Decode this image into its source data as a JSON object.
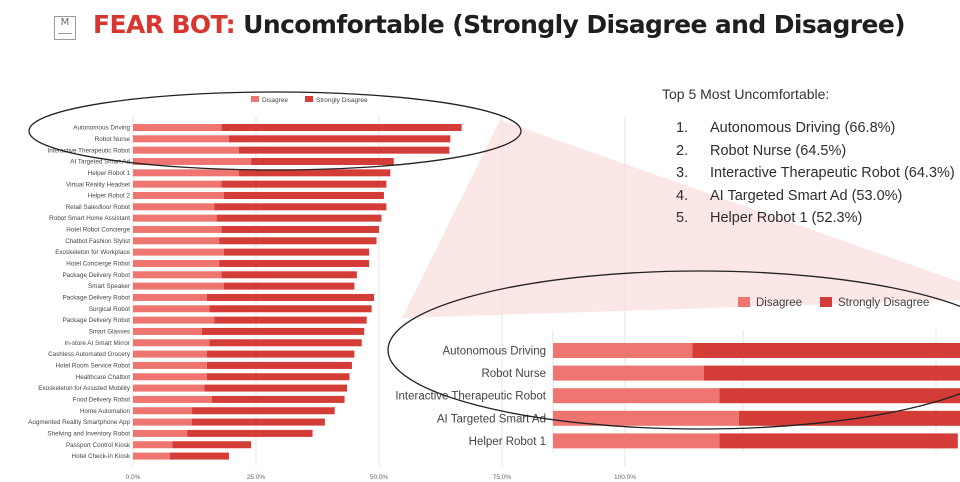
{
  "header": {
    "logo_text": "M",
    "title_brand": "FEAR BOT:",
    "title_rest": "Uncomfortable (Strongly Disagree and Disagree)"
  },
  "top5": {
    "heading": "Top 5 Most Uncomfortable:",
    "items": [
      {
        "num": "1.",
        "text": "Autonomous Driving (66.8%)"
      },
      {
        "num": "2.",
        "text": "Robot Nurse (64.5%)"
      },
      {
        "num": "3.",
        "text": "Interactive Therapeutic Robot (64.3%)"
      },
      {
        "num": "4.",
        "text": "AI Targeted Smart Ad (53.0%)"
      },
      {
        "num": "5.",
        "text": "Helper Robot 1 (52.3%)"
      }
    ]
  },
  "colors": {
    "disagree": "#ef7670",
    "strongly_disagree": "#d43c37",
    "grid": "#e6e6e6",
    "callout_fill": "#fbe3e3"
  },
  "chart_data": [
    {
      "type": "bar",
      "orientation": "horizontal",
      "stacked": true,
      "legend_position": "top",
      "grid": true,
      "xlim": [
        0,
        100
      ],
      "x_ticks": [
        "0.0%",
        "25.0%",
        "50.0%",
        "75.0%",
        "100.0%"
      ],
      "categories": [
        "Autonomous Driving",
        "Robot Nurse",
        "Interactive Therapeutic Robot",
        "AI Targeted Smart Ad",
        "Helper Robot 1",
        "Virtual Reality Headset",
        "Helper Robot 2",
        "Retail Salesfloor Robot",
        "Robot Smart Home Assistant",
        "Hotel Robot Concierge",
        "Chatbot Fashion Stylist",
        "Exoskeleton for Workplace",
        "Hotel Concierge Robot",
        "Package Delivery Robot",
        "Smart Speaker",
        "Package Delivery Robot",
        "Surgical Robot",
        "Package Delivery Robot",
        "Smart Glasses",
        "In-store AI Smart Mirror",
        "Cashless Automated Grocery",
        "Hotel Room Service Robot",
        "Healthcare Chatbot",
        "Exoskeleton for Assisted Mobility",
        "Food Delivery Robot",
        "Home Automation",
        "Augmented Reality Smartphone App",
        "Shelving and Inventory Robot",
        "Passport Control Kiosk",
        "Hotel Check-in Kiosk"
      ],
      "series": [
        {
          "name": "Disagree",
          "values": [
            18.0,
            19.5,
            21.5,
            24.0,
            21.5,
            18.0,
            18.5,
            16.5,
            17.0,
            18.0,
            17.5,
            18.5,
            17.5,
            18.0,
            18.5,
            15.0,
            15.5,
            16.5,
            14.0,
            15.5,
            15.0,
            15.0,
            15.0,
            14.5,
            16.0,
            12.0,
            12.0,
            11.0,
            8.0,
            7.5
          ]
        },
        {
          "name": "Strongly Disagree",
          "values": [
            48.8,
            45.0,
            42.8,
            29.0,
            30.8,
            33.5,
            32.5,
            35.0,
            33.5,
            32.0,
            32.0,
            29.5,
            30.5,
            27.5,
            26.5,
            34.0,
            33.0,
            31.0,
            33.0,
            31.0,
            30.0,
            29.5,
            29.0,
            29.0,
            27.0,
            29.0,
            27.0,
            25.5,
            16.0,
            12.0
          ]
        }
      ]
    },
    {
      "type": "bar",
      "orientation": "horizontal",
      "stacked": true,
      "legend_position": "top",
      "grid": true,
      "categories": [
        "Autonomous Driving",
        "Robot Nurse",
        "Interactive Therapeutic Robot",
        "AI Targeted Smart Ad",
        "Helper Robot 1"
      ],
      "series": [
        {
          "name": "Disagree",
          "values": [
            18.0,
            19.5,
            21.5,
            24.0,
            21.5
          ]
        },
        {
          "name": "Strongly Disagree",
          "values": [
            48.8,
            45.0,
            42.8,
            29.0,
            30.8
          ]
        }
      ]
    }
  ]
}
